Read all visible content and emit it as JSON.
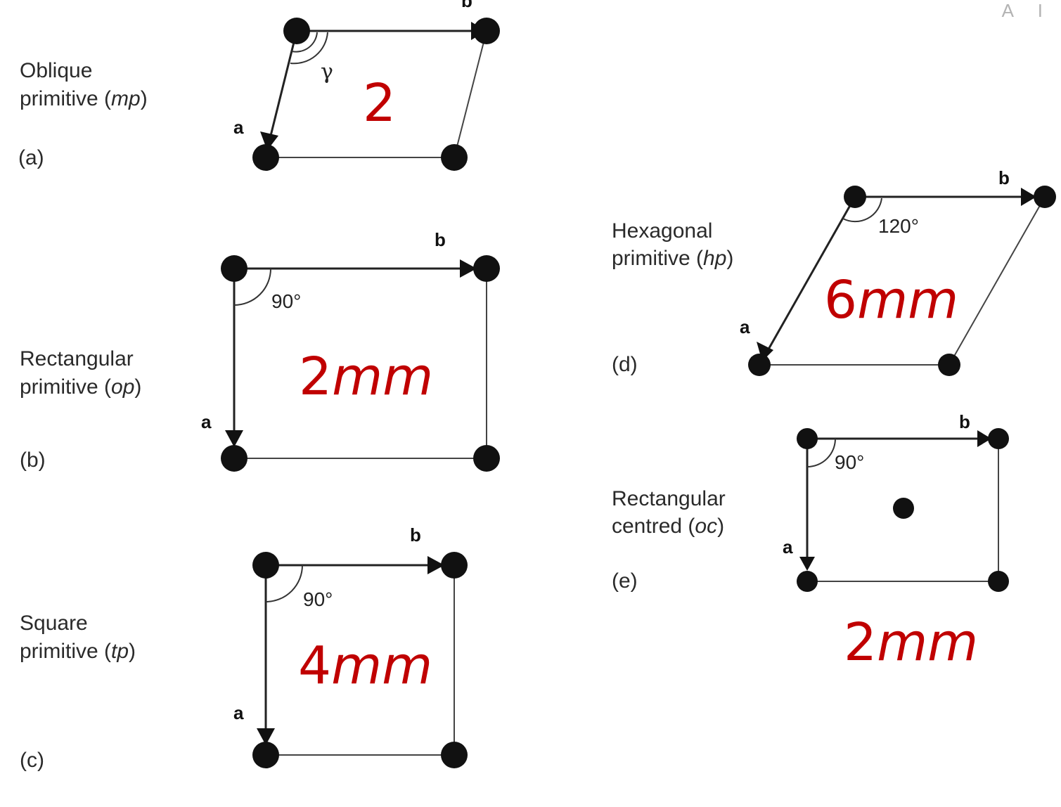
{
  "corner_mark": "A I",
  "colors": {
    "symmetry": "#c00000",
    "lines": "#222222"
  },
  "lattices": [
    {
      "id": "a",
      "name_line1": "Oblique",
      "name_line2_prefix": "primitive (",
      "name_line2_code": "mp",
      "name_line2_suffix": ")",
      "letter": "(a)",
      "angle": "γ",
      "symmetry_prefix": "2",
      "symmetry_italic": "",
      "vector_a": "a",
      "vector_b": "b",
      "centred": false
    },
    {
      "id": "b",
      "name_line1": "Rectangular",
      "name_line2_prefix": "primitive (",
      "name_line2_code": "op",
      "name_line2_suffix": ")",
      "letter": "(b)",
      "angle": "90°",
      "symmetry_prefix": "2",
      "symmetry_italic": "mm",
      "vector_a": "a",
      "vector_b": "b",
      "centred": false
    },
    {
      "id": "c",
      "name_line1": "Square",
      "name_line2_prefix": "primitive (",
      "name_line2_code": "tp",
      "name_line2_suffix": ")",
      "letter": "(c)",
      "angle": "90°",
      "symmetry_prefix": "4",
      "symmetry_italic": "mm",
      "vector_a": "a",
      "vector_b": "b",
      "centred": false
    },
    {
      "id": "d",
      "name_line1": "Hexagonal",
      "name_line2_prefix": "primitive (",
      "name_line2_code": "hp",
      "name_line2_suffix": ")",
      "letter": "(d)",
      "angle": "120°",
      "symmetry_prefix": "6",
      "symmetry_italic": "mm",
      "vector_a": "a",
      "vector_b": "b",
      "centred": false
    },
    {
      "id": "e",
      "name_line1": "Rectangular",
      "name_line2_prefix": "centred (",
      "name_line2_code": "oc",
      "name_line2_suffix": ")",
      "letter": "(e)",
      "angle": "90°",
      "symmetry_prefix": "2",
      "symmetry_italic": "mm",
      "vector_a": "a",
      "vector_b": "b",
      "centred": true
    }
  ]
}
